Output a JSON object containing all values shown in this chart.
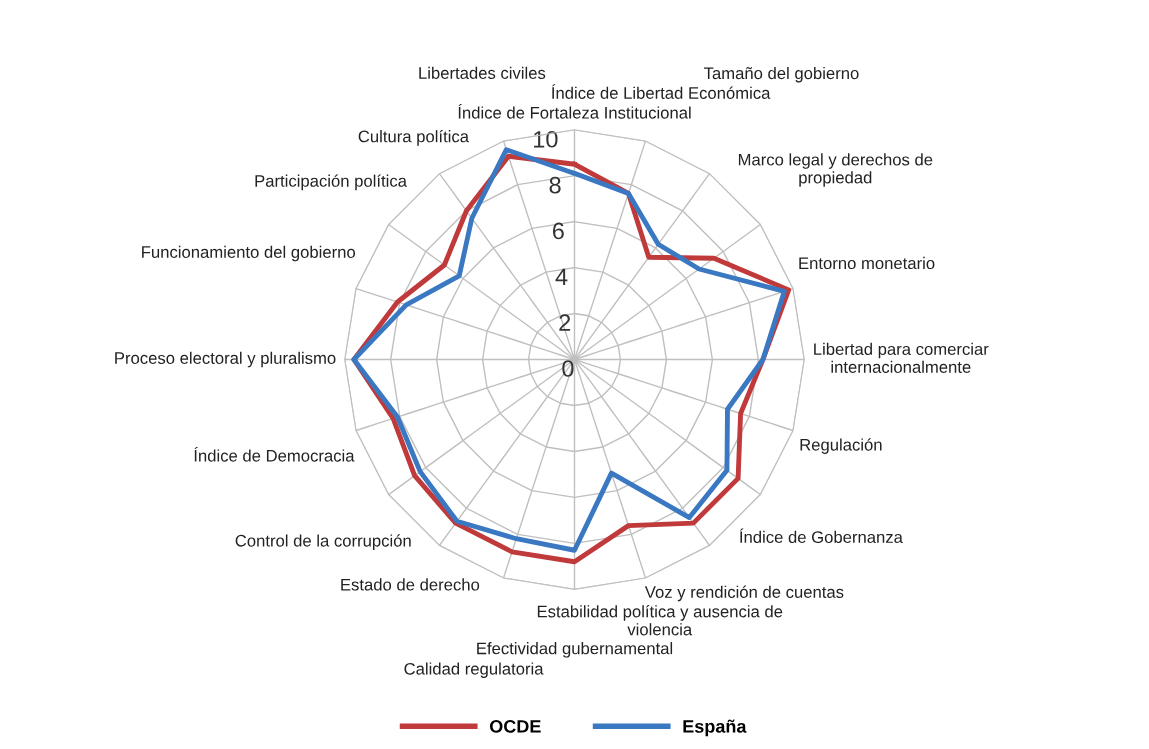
{
  "chart_data": {
    "type": "radar",
    "categories": [
      "Índice de Fortaleza Institucional",
      "Índice de Libertad Económica",
      "Tamaño del gobierno",
      "Marco legal y derechos de\npropiedad",
      "Entorno monetario",
      "Libertad para comerciar\ninternacionalmente",
      "Regulación",
      "Índice de Gobernanza",
      "Voz y rendición de cuentas",
      "Estabilidad política y ausencia de\nviolencia",
      "Efectividad gubernamental",
      "Calidad regulatoria",
      "Estado de derecho",
      "Control de la corrupción",
      "Índice de Democracia",
      "Proceso electoral y pluralismo",
      "Funcionamiento del gobierno",
      "Participación política",
      "Cultura política",
      "Libertades civiles"
    ],
    "series": [
      {
        "name": "OCDE",
        "color": "#c0393b",
        "values": [
          8.5,
          7.6,
          5.5,
          7.5,
          9.8,
          8.2,
          7.6,
          8.8,
          8.8,
          7.6,
          8.8,
          8.8,
          8.8,
          8.6,
          8.3,
          9.6,
          8.1,
          7.0,
          8.0,
          9.3
        ]
      },
      {
        "name": "España",
        "color": "#3a78c2",
        "values": [
          8.1,
          7.6,
          6.2,
          6.7,
          9.6,
          8.2,
          7.0,
          8.2,
          8.5,
          5.2,
          8.3,
          8.2,
          8.7,
          8.3,
          8.1,
          9.6,
          7.7,
          6.2,
          7.6,
          9.6
        ]
      }
    ],
    "ylim": [
      0,
      10
    ],
    "yticks": [
      0,
      2,
      4,
      6,
      8,
      10
    ],
    "grid": true,
    "legend": "bottom",
    "line_style": "solid",
    "marker": "none"
  }
}
